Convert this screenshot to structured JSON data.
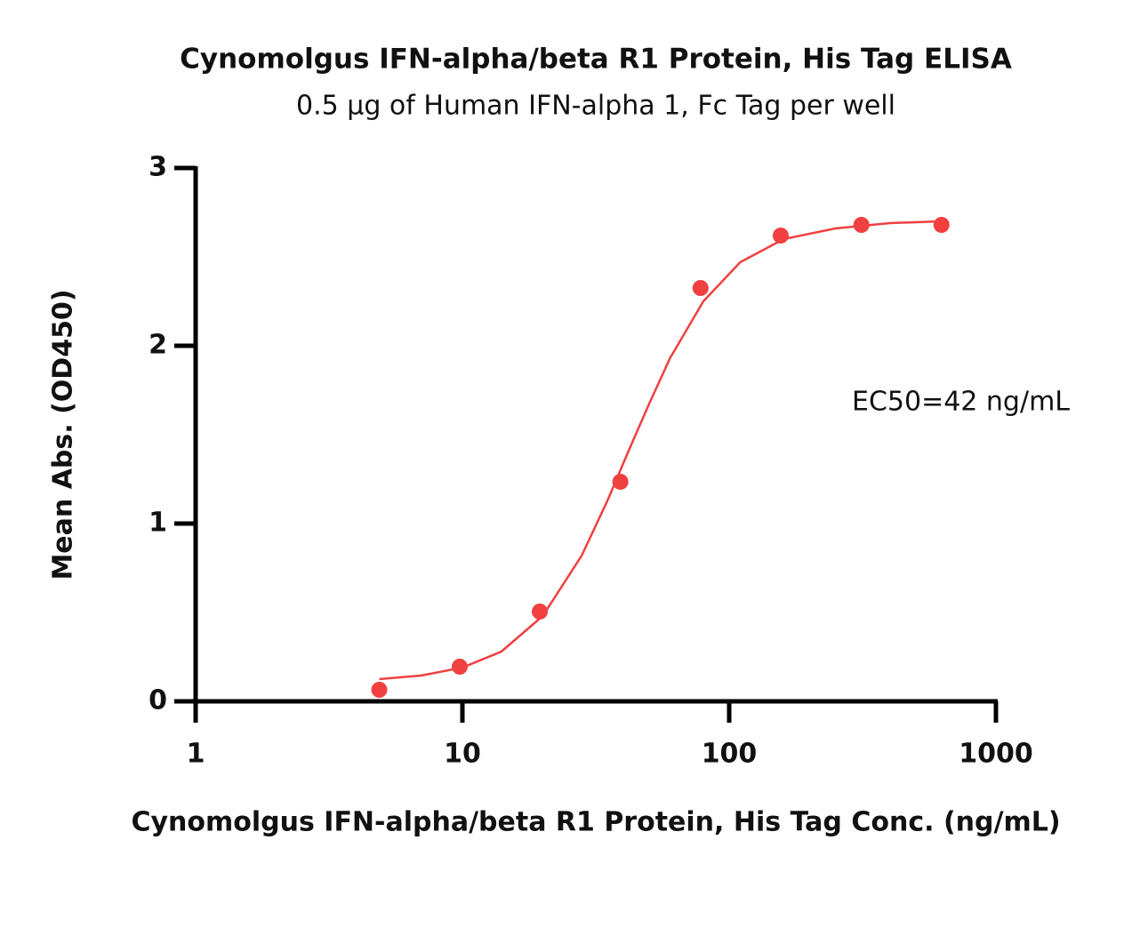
{
  "chart_data": {
    "type": "scatter",
    "title": "Cynomolgus IFN-alpha/beta R1 Protein, His Tag ELISA",
    "subtitle": "0.5 μg of Human IFN-alpha 1, Fc Tag per well",
    "x_label": "Cynomolgus IFN-alpha/beta R1 Protein, His Tag Conc. (ng/mL)",
    "y_label": "Mean Abs. (OD450)",
    "annotation": "EC50=42 ng/mL",
    "log_x": true,
    "color": "#f04040",
    "xlim": [
      1,
      1000
    ],
    "xticks": [
      1,
      10,
      100,
      1000
    ],
    "ylim": [
      0,
      3
    ],
    "yticks": [
      0,
      1,
      2,
      3
    ],
    "points": {
      "x": [
        4.88,
        9.77,
        19.5,
        39.1,
        78.1,
        156,
        313,
        625
      ],
      "values": [
        0.065,
        0.195,
        0.505,
        1.235,
        2.325,
        2.62,
        2.68,
        2.68
      ]
    },
    "fit": {
      "x": [
        4.88,
        7,
        10,
        14,
        20,
        28,
        35,
        42,
        50,
        60,
        80,
        110,
        160,
        250,
        400,
        625
      ],
      "values": [
        0.125,
        0.145,
        0.19,
        0.28,
        0.48,
        0.82,
        1.13,
        1.41,
        1.67,
        1.93,
        2.25,
        2.47,
        2.6,
        2.66,
        2.69,
        2.7
      ]
    }
  }
}
